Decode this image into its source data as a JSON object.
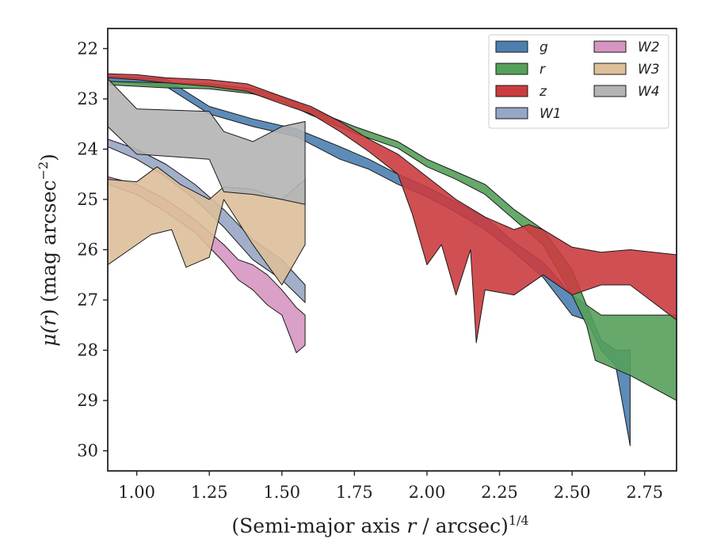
{
  "chart_data": {
    "type": "area",
    "xlabel_pre": "(Semi-major axis ",
    "xlabel_var": "r",
    "xlabel_mid": " / arcsec)",
    "xlabel_exp": "1/4",
    "ylabel_mu": "μ(",
    "ylabel_var": "r",
    "ylabel_close": ")",
    "ylabel_units": " (mag arcsec",
    "ylabel_exp": "−2",
    "ylabel_end": ")",
    "xlim": [
      0.9,
      2.86
    ],
    "ylim": [
      30.4,
      21.6
    ],
    "y_inverted": true,
    "x_ticks": [
      "1.00",
      "1.25",
      "1.50",
      "1.75",
      "2.00",
      "2.25",
      "2.50",
      "2.75"
    ],
    "y_ticks": [
      "22",
      "23",
      "24",
      "25",
      "26",
      "27",
      "28",
      "29",
      "30"
    ],
    "legend_position": "top-right",
    "legend_columns": 2,
    "series": [
      {
        "name": "g",
        "color": "#4c7fb0",
        "upper": [
          [
            0.9,
            22.55
          ],
          [
            1.1,
            22.6
          ],
          [
            1.25,
            23.15
          ],
          [
            1.4,
            23.4
          ],
          [
            1.55,
            23.6
          ],
          [
            1.7,
            23.95
          ],
          [
            1.8,
            24.2
          ],
          [
            1.9,
            24.5
          ],
          [
            2.0,
            24.75
          ],
          [
            2.1,
            25.05
          ],
          [
            2.2,
            25.35
          ],
          [
            2.3,
            25.85
          ],
          [
            2.4,
            26.25
          ],
          [
            2.5,
            26.9
          ],
          [
            2.55,
            27.1
          ],
          [
            2.6,
            27.8
          ],
          [
            2.65,
            28.0
          ],
          [
            2.7,
            28.0
          ]
        ],
        "lower": [
          [
            0.9,
            22.65
          ],
          [
            1.1,
            22.75
          ],
          [
            1.25,
            23.3
          ],
          [
            1.4,
            23.55
          ],
          [
            1.55,
            23.75
          ],
          [
            1.7,
            24.2
          ],
          [
            1.8,
            24.4
          ],
          [
            1.9,
            24.7
          ],
          [
            2.0,
            24.95
          ],
          [
            2.1,
            25.25
          ],
          [
            2.2,
            25.6
          ],
          [
            2.3,
            26.05
          ],
          [
            2.4,
            26.55
          ],
          [
            2.5,
            27.3
          ],
          [
            2.55,
            27.4
          ],
          [
            2.6,
            28.0
          ],
          [
            2.65,
            28.3
          ],
          [
            2.7,
            29.9
          ]
        ]
      },
      {
        "name": "r",
        "color": "#55a05a",
        "upper": [
          [
            0.9,
            22.65
          ],
          [
            1.1,
            22.68
          ],
          [
            1.25,
            22.7
          ],
          [
            1.4,
            22.8
          ],
          [
            1.5,
            22.95
          ],
          [
            1.6,
            23.2
          ],
          [
            1.75,
            23.55
          ],
          [
            1.9,
            23.85
          ],
          [
            2.0,
            24.2
          ],
          [
            2.1,
            24.45
          ],
          [
            2.2,
            24.7
          ],
          [
            2.3,
            25.2
          ],
          [
            2.4,
            25.6
          ],
          [
            2.5,
            26.4
          ],
          [
            2.55,
            27.1
          ],
          [
            2.6,
            27.3
          ],
          [
            2.7,
            27.3
          ],
          [
            2.86,
            27.3
          ]
        ],
        "lower": [
          [
            0.9,
            22.72
          ],
          [
            1.1,
            22.78
          ],
          [
            1.25,
            22.8
          ],
          [
            1.4,
            22.9
          ],
          [
            1.5,
            23.05
          ],
          [
            1.6,
            23.32
          ],
          [
            1.75,
            23.68
          ],
          [
            1.9,
            23.98
          ],
          [
            2.0,
            24.35
          ],
          [
            2.1,
            24.6
          ],
          [
            2.2,
            24.9
          ],
          [
            2.3,
            25.4
          ],
          [
            2.4,
            25.9
          ],
          [
            2.5,
            26.9
          ],
          [
            2.55,
            27.5
          ],
          [
            2.58,
            28.2
          ],
          [
            2.7,
            28.5
          ],
          [
            2.86,
            29.0
          ]
        ]
      },
      {
        "name": "z",
        "color": "#cb3c40",
        "upper": [
          [
            0.9,
            22.5
          ],
          [
            1.0,
            22.52
          ],
          [
            1.1,
            22.58
          ],
          [
            1.25,
            22.62
          ],
          [
            1.38,
            22.7
          ],
          [
            1.5,
            22.95
          ],
          [
            1.6,
            23.15
          ],
          [
            1.7,
            23.45
          ],
          [
            1.8,
            23.8
          ],
          [
            1.9,
            24.1
          ],
          [
            2.0,
            24.55
          ],
          [
            2.1,
            25.0
          ],
          [
            2.2,
            25.35
          ],
          [
            2.3,
            25.6
          ],
          [
            2.35,
            25.5
          ],
          [
            2.4,
            25.6
          ],
          [
            2.5,
            25.95
          ],
          [
            2.6,
            26.05
          ],
          [
            2.7,
            26.0
          ],
          [
            2.86,
            26.1
          ]
        ],
        "lower": [
          [
            0.9,
            22.58
          ],
          [
            1.0,
            22.62
          ],
          [
            1.1,
            22.68
          ],
          [
            1.25,
            22.75
          ],
          [
            1.38,
            22.85
          ],
          [
            1.5,
            23.1
          ],
          [
            1.6,
            23.3
          ],
          [
            1.7,
            23.65
          ],
          [
            1.8,
            24.05
          ],
          [
            1.9,
            24.5
          ],
          [
            1.95,
            25.3
          ],
          [
            2.0,
            26.3
          ],
          [
            2.05,
            25.9
          ],
          [
            2.1,
            26.9
          ],
          [
            2.15,
            26.0
          ],
          [
            2.17,
            27.85
          ],
          [
            2.2,
            26.8
          ],
          [
            2.3,
            26.9
          ],
          [
            2.4,
            26.5
          ],
          [
            2.5,
            26.9
          ],
          [
            2.6,
            26.7
          ],
          [
            2.7,
            26.7
          ],
          [
            2.86,
            27.4
          ]
        ]
      },
      {
        "name": "W1",
        "color": "#97a6c4",
        "upper": [
          [
            0.9,
            23.8
          ],
          [
            1.0,
            24.0
          ],
          [
            1.1,
            24.3
          ],
          [
            1.2,
            24.7
          ],
          [
            1.3,
            25.2
          ],
          [
            1.4,
            25.8
          ],
          [
            1.5,
            26.2
          ],
          [
            1.58,
            26.7
          ]
        ],
        "lower": [
          [
            0.9,
            23.95
          ],
          [
            1.0,
            24.2
          ],
          [
            1.1,
            24.55
          ],
          [
            1.2,
            25.0
          ],
          [
            1.3,
            25.55
          ],
          [
            1.4,
            26.2
          ],
          [
            1.5,
            26.6
          ],
          [
            1.58,
            27.05
          ]
        ]
      },
      {
        "name": "W2",
        "color": "#d696c1",
        "upper": [
          [
            0.9,
            24.55
          ],
          [
            1.0,
            24.7
          ],
          [
            1.1,
            25.0
          ],
          [
            1.2,
            25.4
          ],
          [
            1.3,
            25.9
          ],
          [
            1.35,
            26.2
          ],
          [
            1.4,
            26.3
          ],
          [
            1.45,
            26.5
          ],
          [
            1.5,
            26.8
          ],
          [
            1.55,
            27.15
          ],
          [
            1.58,
            27.3
          ]
        ],
        "lower": [
          [
            0.9,
            24.7
          ],
          [
            1.0,
            24.9
          ],
          [
            1.1,
            25.25
          ],
          [
            1.2,
            25.65
          ],
          [
            1.3,
            26.25
          ],
          [
            1.35,
            26.6
          ],
          [
            1.4,
            26.8
          ],
          [
            1.45,
            27.1
          ],
          [
            1.5,
            27.3
          ],
          [
            1.55,
            28.05
          ],
          [
            1.58,
            27.9
          ]
        ]
      },
      {
        "name": "W3",
        "color": "#ddbf9a",
        "upper": [
          [
            0.9,
            24.6
          ],
          [
            1.0,
            24.65
          ],
          [
            1.07,
            24.35
          ],
          [
            1.15,
            24.7
          ],
          [
            1.25,
            25.0
          ],
          [
            1.3,
            24.75
          ],
          [
            1.4,
            24.8
          ],
          [
            1.5,
            25.0
          ],
          [
            1.58,
            24.6
          ]
        ],
        "lower": [
          [
            0.9,
            26.3
          ],
          [
            1.0,
            25.9
          ],
          [
            1.05,
            25.7
          ],
          [
            1.12,
            25.6
          ],
          [
            1.17,
            26.35
          ],
          [
            1.25,
            26.15
          ],
          [
            1.3,
            25.0
          ],
          [
            1.4,
            25.9
          ],
          [
            1.5,
            26.7
          ],
          [
            1.58,
            25.9
          ]
        ]
      },
      {
        "name": "W4",
        "color": "#b4b4b4",
        "upper": [
          [
            0.9,
            22.6
          ],
          [
            1.0,
            23.2
          ],
          [
            1.25,
            23.25
          ],
          [
            1.3,
            23.65
          ],
          [
            1.4,
            23.85
          ],
          [
            1.5,
            23.55
          ],
          [
            1.58,
            23.45
          ]
        ],
        "lower": [
          [
            0.9,
            23.55
          ],
          [
            1.0,
            24.1
          ],
          [
            1.25,
            24.2
          ],
          [
            1.3,
            24.85
          ],
          [
            1.4,
            24.9
          ],
          [
            1.5,
            25.0
          ],
          [
            1.58,
            25.1
          ]
        ]
      }
    ]
  }
}
